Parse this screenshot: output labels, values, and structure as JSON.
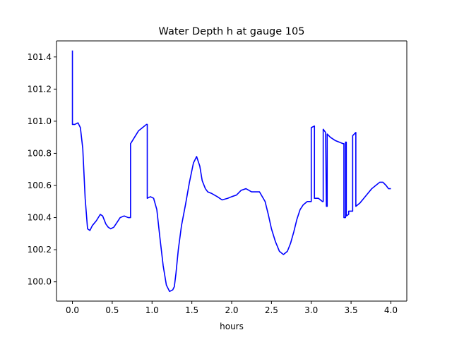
{
  "chart_data": {
    "type": "line",
    "title": "Water Depth h at gauge 105",
    "xlabel": "hours",
    "ylabel": "",
    "xlim": [
      -0.2,
      4.2
    ],
    "ylim": [
      99.88,
      101.5
    ],
    "xticks": [
      0.0,
      0.5,
      1.0,
      1.5,
      2.0,
      2.5,
      3.0,
      3.5,
      4.0
    ],
    "xtick_labels": [
      "0.0",
      "0.5",
      "1.0",
      "1.5",
      "2.0",
      "2.5",
      "3.0",
      "3.5",
      "4.0"
    ],
    "yticks": [
      100.0,
      100.2,
      100.4,
      100.6,
      100.8,
      101.0,
      101.2,
      101.4
    ],
    "ytick_labels": [
      "100.0",
      "100.2",
      "100.4",
      "100.6",
      "100.8",
      "101.0",
      "101.2",
      "101.4"
    ],
    "grid": false,
    "legend": "none",
    "series": [
      {
        "color": "#0000ff",
        "x": [
          0.0,
          0.0,
          0.03,
          0.07,
          0.1,
          0.13,
          0.16,
          0.19,
          0.22,
          0.25,
          0.3,
          0.35,
          0.38,
          0.42,
          0.45,
          0.48,
          0.52,
          0.56,
          0.6,
          0.65,
          0.7,
          0.73,
          0.73,
          0.78,
          0.83,
          0.88,
          0.93,
          0.94,
          0.94,
          0.98,
          1.02,
          1.06,
          1.1,
          1.14,
          1.18,
          1.22,
          1.26,
          1.28,
          1.3,
          1.33,
          1.37,
          1.42,
          1.47,
          1.52,
          1.56,
          1.6,
          1.63,
          1.67,
          1.7,
          1.75,
          1.82,
          1.88,
          1.95,
          2.0,
          2.06,
          2.12,
          2.18,
          2.25,
          2.3,
          2.35,
          2.42,
          2.46,
          2.5,
          2.55,
          2.6,
          2.65,
          2.7,
          2.74,
          2.78,
          2.82,
          2.86,
          2.9,
          2.95,
          3.0,
          3.0,
          3.04,
          3.04,
          3.09,
          3.14,
          3.15,
          3.15,
          3.18,
          3.19,
          3.2,
          3.2,
          3.24,
          3.3,
          3.35,
          3.4,
          3.41,
          3.41,
          3.43,
          3.43,
          3.44,
          3.44,
          3.47,
          3.47,
          3.52,
          3.52,
          3.56,
          3.56,
          3.61,
          3.66,
          3.71,
          3.76,
          3.81,
          3.86,
          3.9,
          3.94,
          3.97,
          4.0
        ],
        "y": [
          101.44,
          100.98,
          100.98,
          100.99,
          100.96,
          100.83,
          100.52,
          100.33,
          100.32,
          100.35,
          100.38,
          100.42,
          100.41,
          100.36,
          100.34,
          100.33,
          100.34,
          100.37,
          100.4,
          100.41,
          100.4,
          100.4,
          100.86,
          100.9,
          100.94,
          100.96,
          100.98,
          100.98,
          100.52,
          100.53,
          100.52,
          100.45,
          100.27,
          100.1,
          99.98,
          99.94,
          99.95,
          99.97,
          100.05,
          100.2,
          100.35,
          100.48,
          100.62,
          100.74,
          100.78,
          100.72,
          100.63,
          100.58,
          100.56,
          100.55,
          100.53,
          100.51,
          100.52,
          100.53,
          100.54,
          100.57,
          100.58,
          100.56,
          100.56,
          100.56,
          100.5,
          100.42,
          100.33,
          100.25,
          100.19,
          100.17,
          100.19,
          100.24,
          100.31,
          100.39,
          100.45,
          100.48,
          100.5,
          100.5,
          100.96,
          100.97,
          100.52,
          100.52,
          100.5,
          100.5,
          100.95,
          100.93,
          100.47,
          100.47,
          100.92,
          100.9,
          100.88,
          100.87,
          100.86,
          100.86,
          100.4,
          100.4,
          100.87,
          100.87,
          100.41,
          100.42,
          100.44,
          100.44,
          100.91,
          100.93,
          100.47,
          100.49,
          100.52,
          100.55,
          100.58,
          100.6,
          100.62,
          100.62,
          100.6,
          100.58,
          100.58
        ]
      }
    ]
  }
}
